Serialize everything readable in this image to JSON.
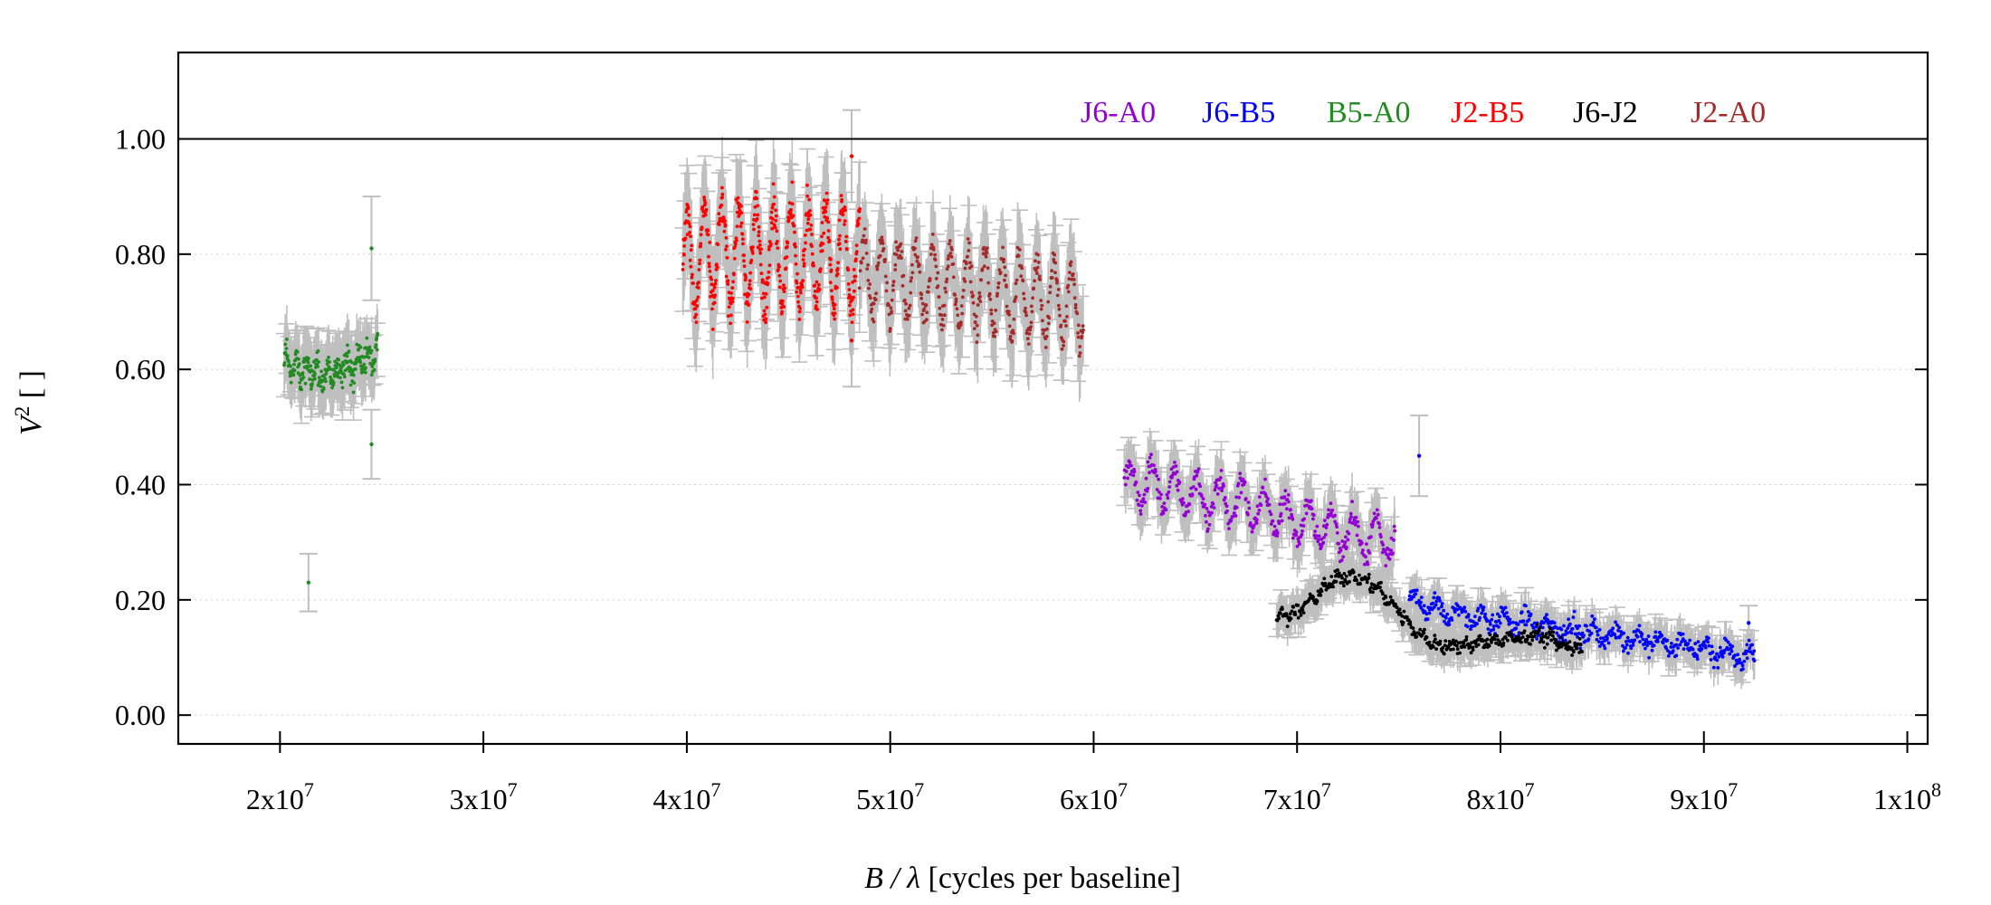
{
  "chart_data": {
    "type": "scatter",
    "title": "",
    "xlabel": {
      "var": "B / λ",
      "unit": " [cycles per baseline]"
    },
    "ylabel": {
      "var": "V",
      "sup": "2",
      "unit": " [ ]"
    },
    "xlim": [
      15000000,
      101000000
    ],
    "ylim": [
      -0.05,
      1.15
    ],
    "reference_line_y": 1.0,
    "grid": "horizontal dotted at y ticks",
    "legend_position": "top-right",
    "error_bar_color": "#bfbfbf",
    "x_ticks": [
      {
        "value": 20000000,
        "mant": "2x10",
        "exp": "7"
      },
      {
        "value": 30000000,
        "mant": "3x10",
        "exp": "7"
      },
      {
        "value": 40000000,
        "mant": "4x10",
        "exp": "7"
      },
      {
        "value": 50000000,
        "mant": "5x10",
        "exp": "7"
      },
      {
        "value": 60000000,
        "mant": "6x10",
        "exp": "7"
      },
      {
        "value": 70000000,
        "mant": "7x10",
        "exp": "7"
      },
      {
        "value": 80000000,
        "mant": "8x10",
        "exp": "7"
      },
      {
        "value": 90000000,
        "mant": "9x10",
        "exp": "7"
      },
      {
        "value": 100000000,
        "mant": "1x10",
        "exp": "8"
      }
    ],
    "y_ticks": [
      {
        "value": 0.0,
        "label": "0.00"
      },
      {
        "value": 0.2,
        "label": "0.20"
      },
      {
        "value": 0.4,
        "label": "0.40"
      },
      {
        "value": 0.6,
        "label": "0.60"
      },
      {
        "value": 0.8,
        "label": "0.80"
      },
      {
        "value": 1.0,
        "label": "1.00"
      }
    ],
    "series": [
      {
        "name": "J6-A0",
        "color": "#9400d3",
        "x": [
          61500000,
          63000000,
          65000000,
          67000000,
          69000000,
          71000000,
          73000000,
          74800000
        ],
        "y": [
          0.4,
          0.4,
          0.38,
          0.37,
          0.35,
          0.33,
          0.31,
          0.3
        ]
      },
      {
        "name": "J6-B5",
        "color": "#0000ff",
        "x": [
          75500000,
          77000000,
          79000000,
          81000000,
          83000000,
          85000000,
          87000000,
          89000000,
          91000000,
          92500000
        ],
        "y": [
          0.2,
          0.18,
          0.17,
          0.16,
          0.15,
          0.14,
          0.13,
          0.12,
          0.11,
          0.1
        ]
      },
      {
        "name": "B5-A0",
        "color": "#228b22",
        "x": [
          20200000,
          21000000,
          22000000,
          23000000,
          24000000,
          24800000
        ],
        "y": [
          0.62,
          0.6,
          0.59,
          0.6,
          0.62,
          0.63
        ]
      },
      {
        "name": "J2-B5",
        "color": "#ff0000",
        "x": [
          39800000,
          41000000,
          43000000,
          45000000,
          47000000,
          48500000
        ],
        "y": [
          0.78,
          0.8,
          0.8,
          0.8,
          0.8,
          0.79
        ]
      },
      {
        "name": "J6-J2",
        "color": "#000000",
        "x": [
          69000000,
          70000000,
          71000000,
          72000000,
          73000000,
          74000000,
          75000000,
          76000000,
          77000000,
          78000000,
          80000000,
          82000000,
          84000000
        ],
        "y": [
          0.17,
          0.18,
          0.21,
          0.24,
          0.24,
          0.22,
          0.18,
          0.14,
          0.12,
          0.12,
          0.13,
          0.14,
          0.11
        ]
      },
      {
        "name": "J2-A0",
        "color": "#a52a2a",
        "x": [
          48500000,
          50000000,
          52000000,
          54000000,
          56000000,
          58000000,
          59500000
        ],
        "y": [
          0.76,
          0.76,
          0.75,
          0.74,
          0.73,
          0.72,
          0.71
        ]
      }
    ],
    "outliers": [
      {
        "series": "B5-A0",
        "x": 21400000,
        "y": 0.23,
        "err": 0.05
      },
      {
        "series": "B5-A0",
        "x": 24500000,
        "y": 0.81,
        "err": 0.09
      },
      {
        "series": "B5-A0",
        "x": 24500000,
        "y": 0.47,
        "err": 0.06
      },
      {
        "series": "J2-B5",
        "x": 48100000,
        "y": 0.97,
        "err": 0.08
      },
      {
        "series": "J2-B5",
        "x": 48100000,
        "y": 0.65,
        "err": 0.08
      },
      {
        "series": "J6-B5",
        "x": 76000000,
        "y": 0.45,
        "err": 0.07
      },
      {
        "series": "J6-B5",
        "x": 92200000,
        "y": 0.16,
        "err": 0.03
      }
    ]
  }
}
